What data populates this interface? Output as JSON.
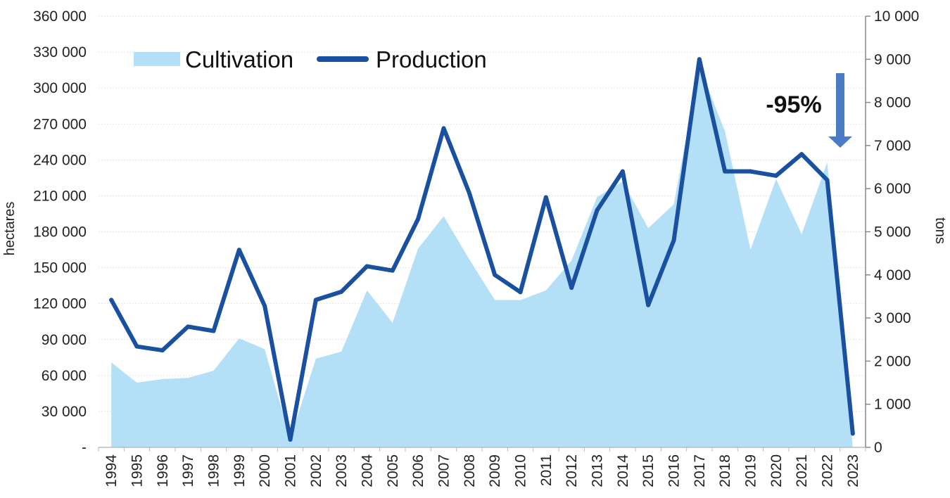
{
  "chart_data": {
    "type": "area+line",
    "title": "",
    "x": [
      "1994",
      "1995",
      "1996",
      "1997",
      "1998",
      "1999",
      "2000",
      "2001",
      "2002",
      "2003",
      "2004",
      "2005",
      "2006",
      "2007",
      "2008",
      "2009",
      "2010",
      "2011",
      "2012",
      "2013",
      "2014",
      "2015",
      "2016",
      "2017",
      "2018",
      "2019",
      "2020",
      "2021",
      "2022",
      "2023"
    ],
    "series": [
      {
        "name": "Cultivation",
        "kind": "area",
        "axis": "left",
        "color": "#b3e0f7",
        "values": [
          71000,
          54000,
          57000,
          58000,
          64000,
          91000,
          82000,
          7000,
          74000,
          80000,
          131000,
          104000,
          166000,
          193000,
          157000,
          123000,
          123000,
          131000,
          156000,
          209000,
          222000,
          183000,
          203000,
          318000,
          264000,
          165000,
          224000,
          178000,
          238000,
          0
        ]
      },
      {
        "name": "Production",
        "kind": "line",
        "axis": "right",
        "color": "#1a50a0",
        "values": [
          3420,
          2340,
          2250,
          2800,
          2700,
          4580,
          3280,
          180,
          3420,
          3610,
          4200,
          4100,
          5300,
          7400,
          5900,
          4000,
          3600,
          5800,
          3700,
          5500,
          6400,
          3300,
          4800,
          9000,
          6400,
          6400,
          6300,
          6800,
          6200,
          320
        ]
      }
    ],
    "y_left": {
      "label": "hectares",
      "range": [
        0,
        360000
      ],
      "ticks": [
        0,
        30000,
        60000,
        90000,
        120000,
        150000,
        180000,
        210000,
        240000,
        270000,
        300000,
        330000,
        360000
      ],
      "tick_labels": [
        "-",
        "30 000",
        "60 000",
        "90 000",
        "120 000",
        "150 000",
        "180 000",
        "210 000",
        "240 000",
        "270 000",
        "300 000",
        "330 000",
        "360 000"
      ]
    },
    "y_right": {
      "label": "tons",
      "range": [
        0,
        10000
      ],
      "ticks": [
        0,
        1000,
        2000,
        3000,
        4000,
        5000,
        6000,
        7000,
        8000,
        9000,
        10000
      ],
      "tick_labels": [
        "0",
        "1 000",
        "2 000",
        "3 000",
        "4 000",
        "5 000",
        "6 000",
        "7 000",
        "8 000",
        "9 000",
        "10 000"
      ]
    },
    "grid": true,
    "legend": {
      "placement": "top-left",
      "items": [
        "Cultivation",
        "Production"
      ]
    },
    "annotation": {
      "text": "-95%",
      "arrow": "down",
      "arrow_color": "#4a7bc4",
      "near": "2022"
    }
  }
}
